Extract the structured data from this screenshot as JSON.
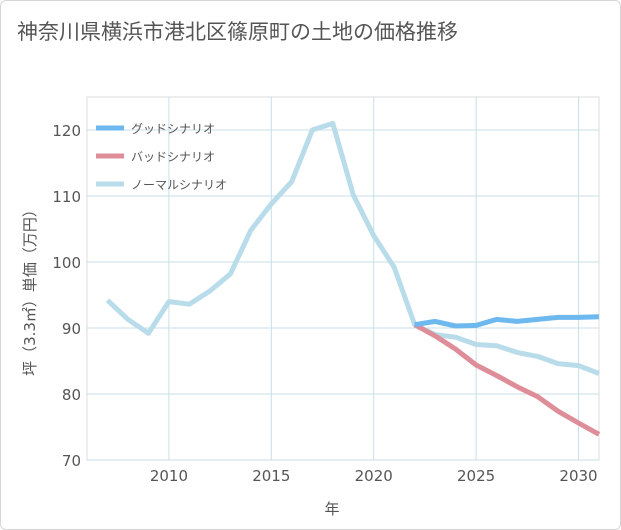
{
  "title": "神奈川県横浜市港北区篠原町の土地の価格推移",
  "chart_data": {
    "type": "line",
    "xlabel": "年",
    "ylabel": "坪（3.3㎡）単価（万円）",
    "xlim": [
      2006,
      2031
    ],
    "ylim": [
      70,
      125
    ],
    "xticks": [
      2010,
      2015,
      2020,
      2025,
      2030
    ],
    "yticks": [
      70,
      80,
      90,
      100,
      110,
      120
    ],
    "grid": true,
    "legend_position": "top-left",
    "series": [
      {
        "name": "グッドシナリオ",
        "color": "#6db8ef",
        "x": [
          2022,
          2023,
          2024,
          2025,
          2026,
          2027,
          2028,
          2029,
          2030,
          2031
        ],
        "y": [
          90.5,
          91.0,
          90.3,
          90.4,
          91.3,
          91.0,
          91.3,
          91.6,
          91.6,
          91.7
        ]
      },
      {
        "name": "バッドシナリオ",
        "color": "#de8e98",
        "x": [
          2022,
          2023,
          2024,
          2025,
          2026,
          2027,
          2028,
          2029,
          2030,
          2031
        ],
        "y": [
          90.5,
          88.8,
          86.8,
          84.4,
          82.8,
          81.1,
          79.6,
          77.4,
          75.6,
          73.9
        ]
      },
      {
        "name": "ノーマルシナリオ",
        "color": "#b9dcea",
        "x": [
          2007,
          2008,
          2009,
          2010,
          2011,
          2012,
          2013,
          2014,
          2015,
          2016,
          2017,
          2018,
          2019,
          2020,
          2021,
          2022,
          2023,
          2024,
          2025,
          2026,
          2027,
          2028,
          2029,
          2030,
          2031
        ],
        "y": [
          94.2,
          91.3,
          89.2,
          94.0,
          93.6,
          95.6,
          98.2,
          104.8,
          108.8,
          112.2,
          120.0,
          121.0,
          110.2,
          104.0,
          99.2,
          90.5,
          89.0,
          88.6,
          87.5,
          87.3,
          86.3,
          85.7,
          84.6,
          84.3,
          83.1
        ]
      }
    ]
  }
}
